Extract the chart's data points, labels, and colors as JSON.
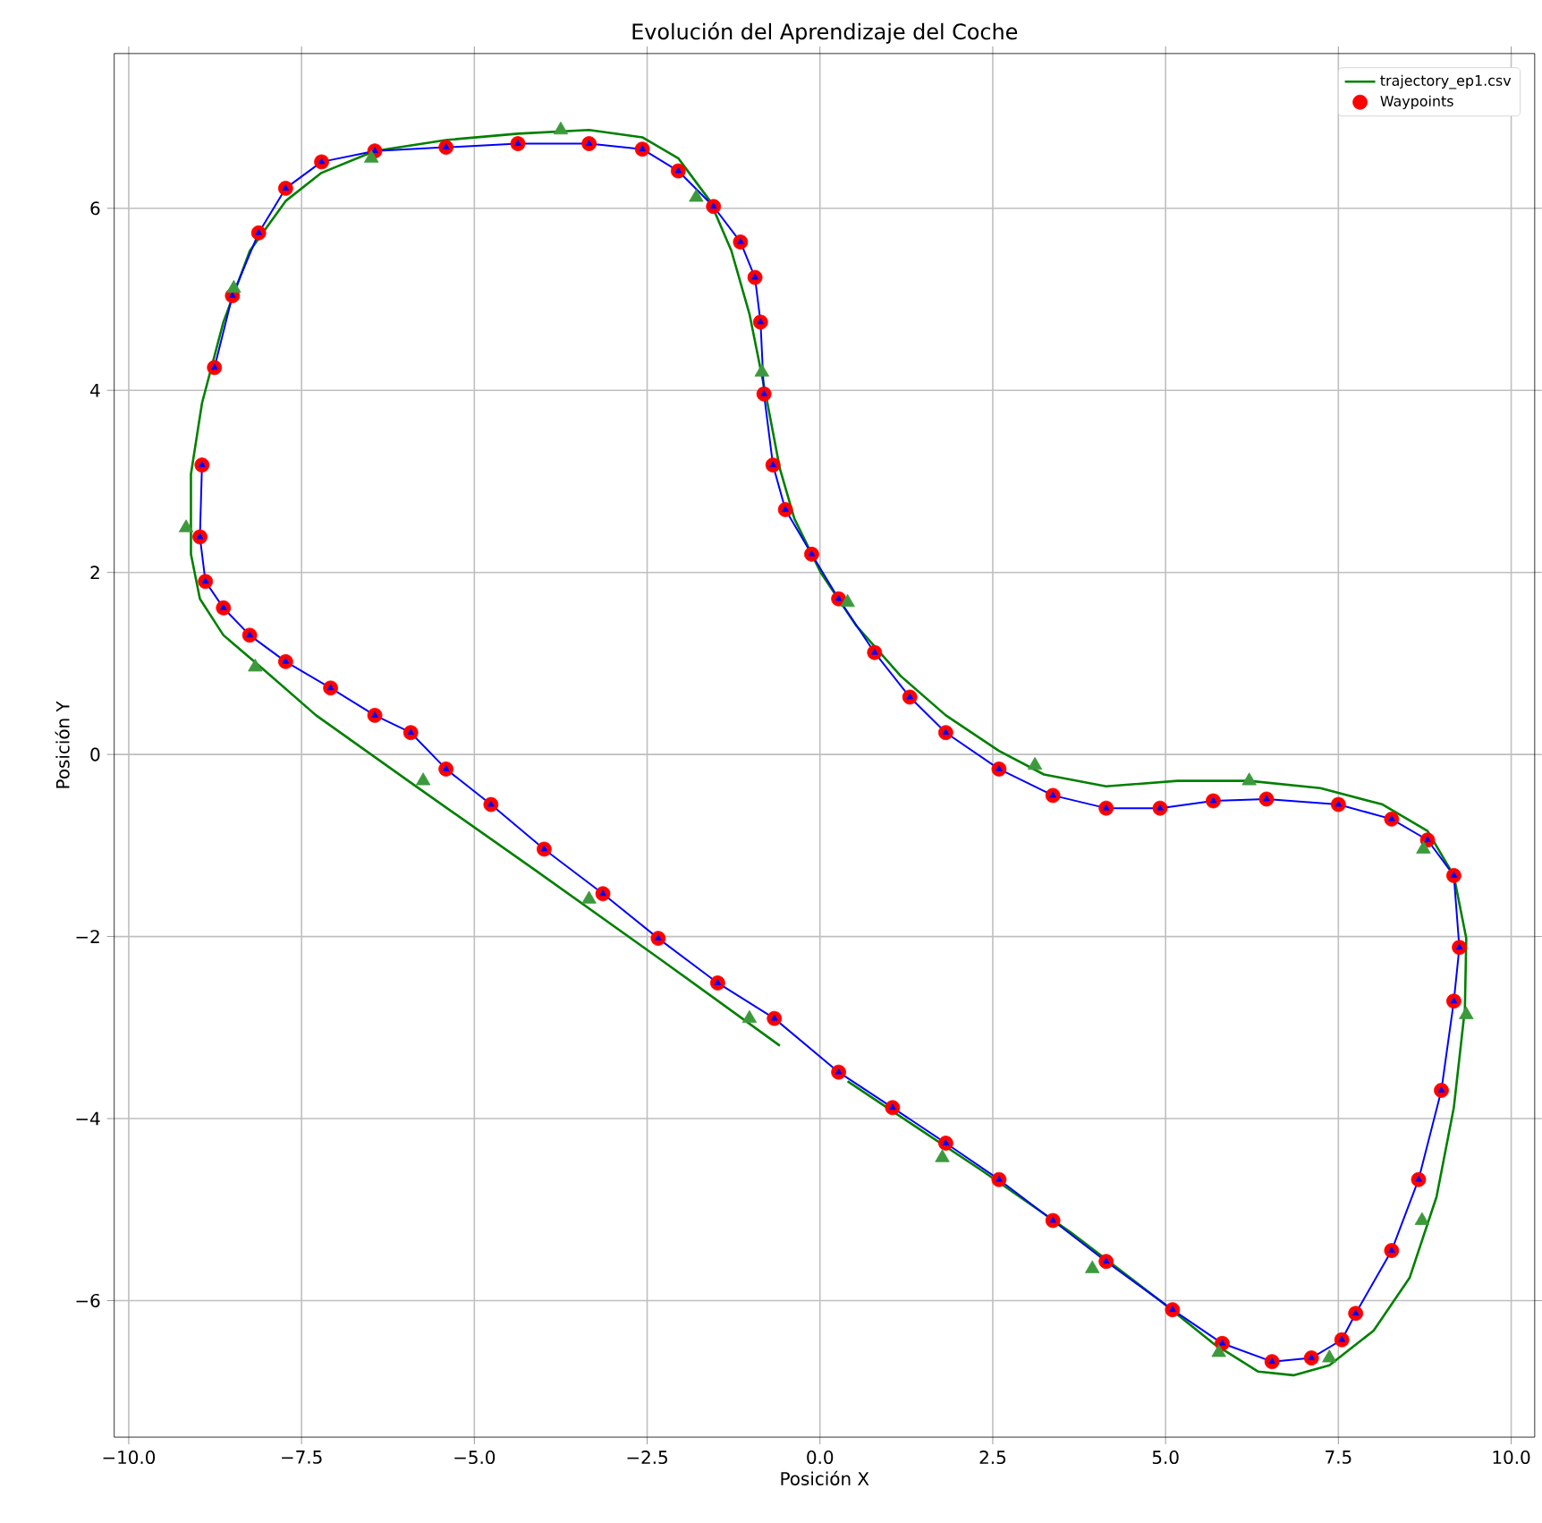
{
  "chart_data": {
    "type": "scatter",
    "title": "Evolución del Aprendizaje del Coche",
    "xlabel": "Posición X",
    "ylabel": "Posición Y",
    "xlim": [
      -10.21,
      10.34
    ],
    "ylim": [
      -7.5,
      7.7
    ],
    "xticks": [
      {
        "value": -10,
        "label": "−10.0"
      },
      {
        "value": -7.5,
        "label": "−7.5"
      },
      {
        "value": -5,
        "label": "−5.0"
      },
      {
        "value": -2.5,
        "label": "−2.5"
      },
      {
        "value": 0,
        "label": "0.0"
      },
      {
        "value": 2.5,
        "label": "2.5"
      },
      {
        "value": 5,
        "label": "5.0"
      },
      {
        "value": 7.5,
        "label": "7.5"
      },
      {
        "value": 10,
        "label": "10.0"
      }
    ],
    "yticks": [
      {
        "value": -6,
        "label": "−6"
      },
      {
        "value": -4,
        "label": "−4"
      },
      {
        "value": -2,
        "label": "−2"
      },
      0,
      2,
      4,
      6
    ],
    "grid": true,
    "legend": "top right",
    "series": [
      {
        "name": "trajectory_ep1.csv",
        "type": "line",
        "color": "#008000",
        "x": [
          0.4,
          1.05,
          2.34,
          3.63,
          4.92,
          5.69,
          6.34,
          6.85,
          7.37,
          8.01,
          8.53,
          8.92,
          9.17,
          9.33,
          9.35,
          9.17,
          8.79,
          8.14,
          7.24,
          6.21,
          5.17,
          4.14,
          3.24,
          2.59,
          1.82,
          1.17,
          0.53,
          0.01,
          -0.37,
          -0.58,
          -0.76,
          -1.02,
          -1.28,
          -1.59,
          -2.05,
          -2.57,
          -3.34,
          -4.37,
          -5.41,
          -6.44,
          -7.21,
          -7.73,
          -8.25,
          -8.63,
          -8.94,
          -9.1,
          -9.1,
          -8.97,
          -8.63,
          -8.12,
          -7.29,
          -5.92,
          -4.12,
          -2.31,
          -0.58
        ],
        "values": [
          -3.59,
          -3.92,
          -4.57,
          -5.25,
          -6.0,
          -6.47,
          -6.78,
          -6.82,
          -6.71,
          -6.33,
          -5.75,
          -4.86,
          -3.88,
          -2.8,
          -2.02,
          -1.33,
          -0.84,
          -0.55,
          -0.37,
          -0.29,
          -0.29,
          -0.35,
          -0.22,
          0.04,
          0.43,
          0.86,
          1.41,
          2.0,
          2.59,
          3.14,
          3.86,
          4.84,
          5.53,
          6.08,
          6.55,
          6.78,
          6.86,
          6.82,
          6.75,
          6.63,
          6.39,
          6.08,
          5.53,
          4.75,
          3.86,
          3.08,
          2.2,
          1.71,
          1.31,
          0.98,
          0.43,
          -0.31,
          -1.27,
          -2.25,
          -3.2
        ]
      },
      {
        "name": "Waypoints",
        "type": "scatter",
        "color": "#ff0000",
        "marker": "circle",
        "x": [
          -8.94,
          -8.97,
          -8.89,
          -8.63,
          -8.25,
          -7.73,
          -7.08,
          -6.44,
          -5.92,
          -5.41,
          -4.76,
          -3.99,
          -3.14,
          -2.34,
          -1.48,
          -0.66,
          0.27,
          1.05,
          1.82,
          2.59,
          3.37,
          4.14,
          5.1,
          5.82,
          6.54,
          7.11,
          7.55,
          7.75,
          8.27,
          8.66,
          8.99,
          9.17,
          9.25,
          9.17,
          8.79,
          8.27,
          7.5,
          6.46,
          5.69,
          4.92,
          4.14,
          3.37,
          2.59,
          1.82,
          1.3,
          0.79,
          0.27,
          -0.12,
          -0.5,
          -0.68,
          -0.81,
          -0.86,
          -0.94,
          -1.15,
          -1.54,
          -2.05,
          -2.57,
          -3.34,
          -4.37,
          -5.41,
          -6.44,
          -7.21,
          -7.73,
          -8.12,
          -8.5,
          -8.76
        ],
        "values": [
          3.18,
          2.39,
          1.9,
          1.61,
          1.31,
          1.02,
          0.73,
          0.43,
          0.24,
          -0.16,
          -0.55,
          -1.04,
          -1.53,
          -2.02,
          -2.51,
          -2.9,
          -3.49,
          -3.88,
          -4.27,
          -4.67,
          -5.12,
          -5.57,
          -6.1,
          -6.47,
          -6.67,
          -6.63,
          -6.43,
          -6.14,
          -5.45,
          -4.67,
          -3.69,
          -2.71,
          -2.12,
          -1.33,
          -0.94,
          -0.71,
          -0.55,
          -0.49,
          -0.51,
          -0.59,
          -0.59,
          -0.45,
          -0.16,
          0.24,
          0.63,
          1.12,
          1.71,
          2.2,
          2.69,
          3.18,
          3.96,
          4.75,
          5.24,
          5.63,
          6.02,
          6.41,
          6.65,
          6.71,
          6.71,
          6.67,
          6.63,
          6.51,
          6.22,
          5.73,
          5.04,
          4.25
        ]
      },
      {
        "type": "line",
        "color": "#0000ff",
        "marker": "triangle",
        "x": [
          -8.94,
          -8.97,
          -8.89,
          -8.63,
          -8.25,
          -7.73,
          -7.08,
          -6.44,
          -5.92,
          -5.41,
          -4.76,
          -3.99,
          -3.14,
          -2.34,
          -1.48,
          -0.66,
          0.27,
          1.05,
          1.82,
          2.59,
          3.37,
          4.14,
          5.1,
          5.82,
          6.54,
          7.11,
          7.55,
          7.75,
          8.27,
          8.66,
          8.99,
          9.17,
          9.25,
          9.17,
          8.79,
          8.27,
          7.5,
          6.46,
          5.69,
          4.92,
          4.14,
          3.37,
          2.59,
          1.82,
          1.3,
          0.79,
          0.27,
          -0.12,
          -0.5,
          -0.68,
          -0.81,
          -0.86,
          -0.94,
          -1.15,
          -1.54,
          -2.05,
          -2.57,
          -3.34,
          -4.37,
          -5.41,
          -6.44,
          -7.21,
          -7.73,
          -8.12,
          -8.5,
          -8.76
        ],
        "values": [
          3.18,
          2.39,
          1.9,
          1.61,
          1.31,
          1.02,
          0.73,
          0.43,
          0.24,
          -0.16,
          -0.55,
          -1.04,
          -1.53,
          -2.02,
          -2.51,
          -2.9,
          -3.49,
          -3.88,
          -4.27,
          -4.67,
          -5.12,
          -5.57,
          -6.1,
          -6.47,
          -6.67,
          -6.63,
          -6.43,
          -6.14,
          -5.45,
          -4.67,
          -3.69,
          -2.71,
          -2.12,
          -1.33,
          -0.94,
          -0.71,
          -0.55,
          -0.49,
          -0.51,
          -0.59,
          -0.59,
          -0.45,
          -0.16,
          0.24,
          0.63,
          1.12,
          1.71,
          2.2,
          2.69,
          3.18,
          3.96,
          4.75,
          5.24,
          5.63,
          6.02,
          6.41,
          6.65,
          6.71,
          6.71,
          6.67,
          6.63,
          6.51,
          6.22,
          5.73,
          5.04,
          4.25
        ]
      },
      {
        "type": "scatter",
        "color": "#3c9a3c",
        "marker": "triangle",
        "x": [
          -6.49,
          -3.75,
          -1.79,
          -0.84,
          -9.17,
          -8.17,
          -5.74,
          -3.34,
          -1.02,
          0.4,
          3.11,
          6.21,
          8.73,
          9.35,
          8.71,
          7.37,
          5.77,
          3.94,
          1.77,
          -8.48
        ],
        "values": [
          6.55,
          6.86,
          6.12,
          4.2,
          2.49,
          0.96,
          -0.29,
          -1.59,
          -2.9,
          1.67,
          -0.12,
          -0.29,
          -1.04,
          -2.86,
          -5.12,
          -6.63,
          -6.57,
          -5.65,
          -4.43,
          5.12
        ]
      }
    ]
  }
}
